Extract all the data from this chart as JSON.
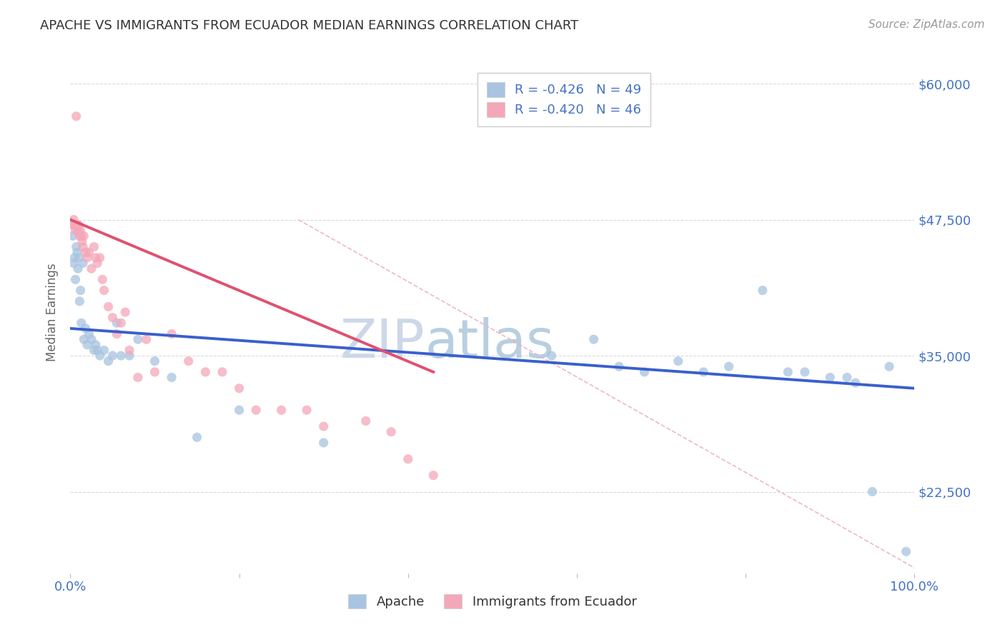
{
  "title": "APACHE VS IMMIGRANTS FROM ECUADOR MEDIAN EARNINGS CORRELATION CHART",
  "source": "Source: ZipAtlas.com",
  "ylabel": "Median Earnings",
  "y_tick_labels": [
    "$22,500",
    "$35,000",
    "$47,500",
    "$60,000"
  ],
  "y_values": [
    22500,
    35000,
    47500,
    60000
  ],
  "xlim": [
    0,
    1
  ],
  "ylim": [
    15000,
    63000
  ],
  "legend_r_apache": "R = -0.426",
  "legend_n_apache": "N = 49",
  "legend_r_ecuador": "R = -0.420",
  "legend_n_ecuador": "N = 46",
  "apache_color": "#a8c4e0",
  "ecuador_color": "#f4a7b9",
  "apache_line_color": "#3a5fcd",
  "ecuador_line_color": "#e05070",
  "diagonal_line_color": "#f0b0b8",
  "background_color": "#ffffff",
  "grid_color": "#cccccc",
  "title_color": "#333333",
  "axis_label_color": "#4472c4",
  "watermark_zip": "ZIP",
  "watermark_atlas": "atlas",
  "apache_scatter_x": [
    0.003,
    0.004,
    0.005,
    0.006,
    0.007,
    0.008,
    0.009,
    0.01,
    0.011,
    0.012,
    0.013,
    0.015,
    0.016,
    0.018,
    0.02,
    0.022,
    0.025,
    0.028,
    0.03,
    0.032,
    0.035,
    0.04,
    0.045,
    0.05,
    0.055,
    0.06,
    0.07,
    0.08,
    0.1,
    0.12,
    0.15,
    0.2,
    0.3,
    0.57,
    0.62,
    0.65,
    0.68,
    0.72,
    0.75,
    0.78,
    0.82,
    0.85,
    0.87,
    0.9,
    0.92,
    0.93,
    0.95,
    0.97,
    0.99
  ],
  "apache_scatter_y": [
    46000,
    43500,
    44000,
    42000,
    45000,
    44500,
    43000,
    44000,
    40000,
    41000,
    38000,
    43500,
    36500,
    37500,
    36000,
    37000,
    36500,
    35500,
    36000,
    35500,
    35000,
    35500,
    34500,
    35000,
    38000,
    35000,
    35000,
    36500,
    34500,
    33000,
    27500,
    30000,
    27000,
    35000,
    36500,
    34000,
    33500,
    34500,
    33500,
    34000,
    41000,
    33500,
    33500,
    33000,
    33000,
    32500,
    22500,
    34000,
    17000
  ],
  "ecuador_scatter_x": [
    0.003,
    0.004,
    0.005,
    0.006,
    0.007,
    0.008,
    0.009,
    0.01,
    0.011,
    0.012,
    0.013,
    0.014,
    0.015,
    0.016,
    0.018,
    0.02,
    0.022,
    0.025,
    0.028,
    0.03,
    0.032,
    0.035,
    0.038,
    0.04,
    0.045,
    0.05,
    0.055,
    0.06,
    0.065,
    0.07,
    0.08,
    0.09,
    0.1,
    0.12,
    0.14,
    0.16,
    0.18,
    0.2,
    0.22,
    0.25,
    0.28,
    0.3,
    0.35,
    0.38,
    0.4,
    0.43
  ],
  "ecuador_scatter_y": [
    47000,
    47500,
    47000,
    46500,
    57000,
    47000,
    46500,
    47000,
    46000,
    46500,
    46000,
    45500,
    45000,
    46000,
    44500,
    44000,
    44500,
    43000,
    45000,
    44000,
    43500,
    44000,
    42000,
    41000,
    39500,
    38500,
    37000,
    38000,
    39000,
    35500,
    33000,
    36500,
    33500,
    37000,
    34500,
    33500,
    33500,
    32000,
    30000,
    30000,
    30000,
    28500,
    29000,
    28000,
    25500,
    24000
  ],
  "apache_line_x": [
    0.0,
    1.0
  ],
  "apache_line_y": [
    37500,
    32000
  ],
  "ecuador_line_x": [
    0.0,
    0.43
  ],
  "ecuador_line_y": [
    47500,
    33500
  ],
  "diag_line_x": [
    0.27,
    1.0
  ],
  "diag_line_y": [
    47500,
    15500
  ]
}
